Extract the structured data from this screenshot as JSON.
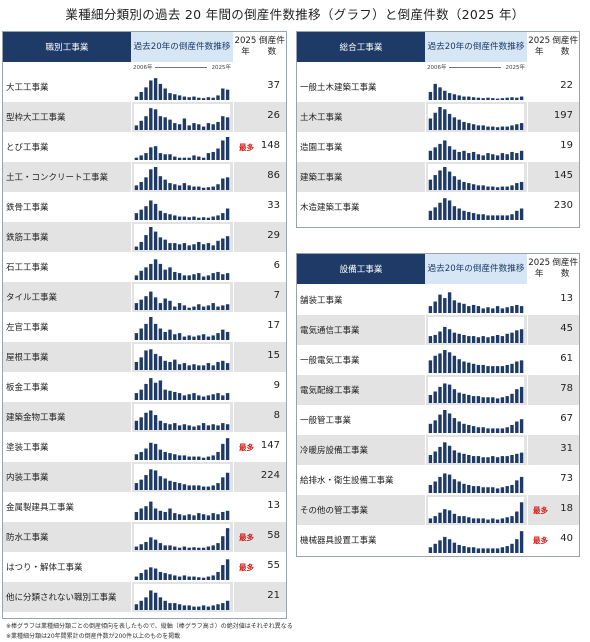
{
  "title": "業種細分類別の過去 20 年間の倒産件数推移（グラフ）と倒産件数（2025 年）",
  "colors": {
    "header_dark": "#1e3a66",
    "header_light": "#d6e6f5",
    "bar": "#1e3a66",
    "alt_row": "#e3e3e3",
    "badge": "#d0201a"
  },
  "axis_labels": {
    "start": "2006年",
    "end": "2025年"
  },
  "badge_text": "最多",
  "panels": [
    {
      "name": "職別工事業",
      "col1": "職別工事業",
      "col2a": "過去20年の",
      "col2b": "倒産件数推移",
      "col3a": "2025年",
      "col3b": "倒産件数",
      "show_axis": true
    },
    {
      "name": "総合工事業",
      "col1": "総合工事業",
      "col2a": "過去20年の",
      "col2b": "倒産件数推移",
      "col3a": "2025年",
      "col3b": "倒産件数",
      "show_axis": true
    },
    {
      "name": "設備工事業",
      "col1": "設備工事業",
      "col2a": "過去20年の",
      "col2b": "倒産件数推移",
      "col3a": "2025年",
      "col3b": "倒産件数",
      "show_axis": false
    }
  ],
  "chart_data": [
    {
      "type": "bar",
      "group": "職別工事業",
      "note": "sparkline of annual counts 2006-2025, normalized per row",
      "rows": [
        {
          "label": "大工工事業",
          "value": "37",
          "top": false,
          "bars": [
            0.15,
            0.35,
            0.55,
            0.85,
            0.95,
            0.7,
            0.5,
            0.3,
            0.25,
            0.2,
            0.15,
            0.12,
            0.15,
            0.1,
            0.08,
            0.12,
            0.1,
            0.2,
            0.5,
            0.45
          ]
        },
        {
          "label": "型枠大工工事業",
          "value": "26",
          "top": false,
          "bars": [
            0.2,
            0.4,
            0.6,
            0.95,
            0.9,
            0.6,
            0.55,
            0.45,
            0.3,
            0.25,
            0.5,
            0.2,
            0.3,
            0.25,
            0.15,
            0.3,
            0.25,
            0.35,
            0.6,
            0.55
          ]
        },
        {
          "label": "とび工事業",
          "value": "148",
          "top": true,
          "bars": [
            0.1,
            0.2,
            0.3,
            0.55,
            0.6,
            0.3,
            0.25,
            0.25,
            0.15,
            0.1,
            0.1,
            0.1,
            0.2,
            0.15,
            0.1,
            0.3,
            0.35,
            0.5,
            0.85,
            1.0
          ]
        },
        {
          "label": "土工・コンクリート工事業",
          "value": "86",
          "top": false,
          "bars": [
            0.2,
            0.35,
            0.55,
            0.9,
            1.0,
            0.6,
            0.45,
            0.3,
            0.25,
            0.2,
            0.3,
            0.2,
            0.15,
            0.15,
            0.1,
            0.12,
            0.15,
            0.25,
            0.5,
            0.55
          ]
        },
        {
          "label": "鉄骨工事業",
          "value": "33",
          "top": false,
          "bars": [
            0.3,
            0.45,
            0.6,
            0.85,
            0.7,
            0.4,
            0.3,
            0.25,
            0.2,
            0.15,
            0.15,
            0.12,
            0.15,
            0.1,
            0.12,
            0.1,
            0.15,
            0.2,
            0.3,
            0.5
          ]
        },
        {
          "label": "鉄筋工事業",
          "value": "29",
          "top": false,
          "bars": [
            0.15,
            0.35,
            0.65,
            1.0,
            0.8,
            0.55,
            0.45,
            0.3,
            0.3,
            0.25,
            0.3,
            0.2,
            0.25,
            0.35,
            0.25,
            0.3,
            0.2,
            0.4,
            0.5,
            0.6
          ]
        },
        {
          "label": "石工工事業",
          "value": "6",
          "top": false,
          "bars": [
            0.2,
            0.4,
            0.55,
            0.7,
            0.9,
            0.7,
            0.45,
            0.55,
            0.35,
            0.3,
            0.2,
            0.2,
            0.25,
            0.3,
            0.15,
            0.2,
            0.3,
            0.35,
            0.25,
            0.3
          ]
        },
        {
          "label": "タイル工事業",
          "value": "7",
          "top": false,
          "bars": [
            0.3,
            0.45,
            0.6,
            0.8,
            0.55,
            0.3,
            0.5,
            0.4,
            0.15,
            0.3,
            0.2,
            0.1,
            0.15,
            0.25,
            0.15,
            0.2,
            0.3,
            0.15,
            0.2,
            0.25
          ]
        },
        {
          "label": "左官工事業",
          "value": "17",
          "top": false,
          "bars": [
            0.3,
            0.5,
            0.7,
            1.0,
            0.7,
            0.5,
            0.35,
            0.45,
            0.25,
            0.3,
            0.15,
            0.2,
            0.15,
            0.2,
            0.25,
            0.15,
            0.2,
            0.3,
            0.45,
            0.35
          ]
        },
        {
          "label": "屋根工事業",
          "value": "15",
          "top": false,
          "bars": [
            0.35,
            0.55,
            0.85,
            0.9,
            0.7,
            0.6,
            0.4,
            0.35,
            0.45,
            0.25,
            0.3,
            0.2,
            0.25,
            0.2,
            0.2,
            0.3,
            0.2,
            0.35,
            0.4,
            0.3
          ]
        },
        {
          "label": "板金工事業",
          "value": "9",
          "top": false,
          "bars": [
            0.3,
            0.45,
            0.7,
            0.95,
            0.75,
            0.85,
            0.45,
            0.4,
            0.35,
            0.3,
            0.2,
            0.25,
            0.3,
            0.2,
            0.15,
            0.2,
            0.25,
            0.3,
            0.2,
            0.3
          ]
        },
        {
          "label": "建築金物工事業",
          "value": "8",
          "top": false,
          "bars": [
            0.4,
            0.55,
            0.75,
            0.85,
            0.65,
            0.4,
            0.3,
            0.25,
            0.3,
            0.2,
            0.25,
            0.2,
            0.15,
            0.2,
            0.3,
            0.2,
            0.25,
            0.2,
            0.3,
            0.25
          ]
        },
        {
          "label": "塗装工事業",
          "value": "147",
          "top": true,
          "bars": [
            0.25,
            0.35,
            0.5,
            0.75,
            0.7,
            0.45,
            0.35,
            0.3,
            0.25,
            0.2,
            0.2,
            0.15,
            0.15,
            0.15,
            0.1,
            0.15,
            0.2,
            0.35,
            0.7,
            0.95
          ]
        },
        {
          "label": "内装工事業",
          "value": "224",
          "top": false,
          "bars": [
            0.3,
            0.45,
            0.65,
            0.9,
            0.85,
            0.6,
            0.5,
            0.4,
            0.35,
            0.3,
            0.25,
            0.2,
            0.2,
            0.2,
            0.15,
            0.15,
            0.2,
            0.3,
            0.55,
            0.75
          ]
        },
        {
          "label": "金属製建具工事業",
          "value": "13",
          "top": false,
          "bars": [
            0.35,
            0.5,
            0.6,
            0.8,
            0.5,
            0.4,
            0.35,
            0.5,
            0.3,
            0.25,
            0.2,
            0.25,
            0.2,
            0.3,
            0.25,
            0.2,
            0.3,
            0.25,
            0.35,
            0.4
          ]
        },
        {
          "label": "防水工事業",
          "value": "58",
          "top": true,
          "bars": [
            0.15,
            0.25,
            0.35,
            0.55,
            0.45,
            0.3,
            0.2,
            0.2,
            0.15,
            0.1,
            0.15,
            0.1,
            0.12,
            0.1,
            0.1,
            0.15,
            0.2,
            0.3,
            0.6,
            0.95
          ]
        },
        {
          "label": "はつり・解体工事業",
          "value": "55",
          "top": true,
          "bars": [
            0.15,
            0.3,
            0.45,
            0.55,
            0.5,
            0.35,
            0.3,
            0.25,
            0.2,
            0.15,
            0.2,
            0.15,
            0.15,
            0.12,
            0.1,
            0.15,
            0.2,
            0.35,
            0.65,
            0.9
          ]
        },
        {
          "label": "他に分類されない職別工事業",
          "value": "21",
          "top": false,
          "bars": [
            0.25,
            0.4,
            0.55,
            0.85,
            0.75,
            0.55,
            0.4,
            0.3,
            0.3,
            0.25,
            0.2,
            0.2,
            0.15,
            0.15,
            0.2,
            0.15,
            0.2,
            0.25,
            0.3,
            0.4
          ]
        }
      ]
    },
    {
      "type": "bar",
      "group": "総合工事業",
      "rows": [
        {
          "label": "一般土木建築工事業",
          "value": "22",
          "top": false,
          "bars": [
            0.35,
            0.7,
            0.55,
            0.4,
            0.3,
            0.25,
            0.2,
            0.15,
            0.15,
            0.12,
            0.1,
            0.08,
            0.1,
            0.08,
            0.06,
            0.08,
            0.1,
            0.12,
            0.1,
            0.15
          ]
        },
        {
          "label": "土木工事業",
          "value": "197",
          "top": false,
          "bars": [
            0.5,
            0.75,
            1.0,
            0.9,
            0.7,
            0.55,
            0.45,
            0.35,
            0.3,
            0.25,
            0.2,
            0.2,
            0.15,
            0.15,
            0.12,
            0.15,
            0.15,
            0.2,
            0.25,
            0.3
          ]
        },
        {
          "label": "造園工事業",
          "value": "19",
          "top": false,
          "bars": [
            0.4,
            0.55,
            0.7,
            0.85,
            0.6,
            0.45,
            0.35,
            0.4,
            0.3,
            0.35,
            0.25,
            0.2,
            0.3,
            0.25,
            0.2,
            0.3,
            0.25,
            0.35,
            0.3,
            0.4
          ]
        },
        {
          "label": "建築工事業",
          "value": "145",
          "top": false,
          "bars": [
            0.45,
            0.65,
            0.85,
            1.0,
            0.8,
            0.6,
            0.45,
            0.35,
            0.3,
            0.25,
            0.2,
            0.2,
            0.15,
            0.15,
            0.12,
            0.15,
            0.15,
            0.2,
            0.3,
            0.35
          ]
        },
        {
          "label": "木造建築工事業",
          "value": "230",
          "top": false,
          "bars": [
            0.4,
            0.55,
            0.75,
            0.95,
            0.85,
            0.6,
            0.5,
            0.4,
            0.35,
            0.3,
            0.25,
            0.25,
            0.2,
            0.2,
            0.2,
            0.2,
            0.2,
            0.25,
            0.4,
            0.5
          ]
        }
      ]
    },
    {
      "type": "bar",
      "group": "設備工事業",
      "rows": [
        {
          "label": "舗装工事業",
          "value": "13",
          "top": false,
          "bars": [
            0.3,
            0.5,
            0.8,
            0.65,
            0.9,
            0.55,
            0.45,
            0.4,
            0.3,
            0.35,
            0.3,
            0.2,
            0.25,
            0.2,
            0.3,
            0.2,
            0.25,
            0.3,
            0.35,
            0.3
          ]
        },
        {
          "label": "電気通信工事業",
          "value": "45",
          "top": false,
          "bars": [
            0.3,
            0.35,
            0.5,
            0.7,
            0.6,
            0.45,
            0.4,
            0.35,
            0.3,
            0.3,
            0.25,
            0.3,
            0.25,
            0.3,
            0.35,
            0.3,
            0.4,
            0.45,
            0.55,
            0.6
          ]
        },
        {
          "label": "一般電気工事業",
          "value": "61",
          "top": false,
          "bars": [
            0.55,
            0.75,
            0.85,
            1.0,
            0.9,
            0.75,
            0.6,
            0.5,
            0.45,
            0.4,
            0.35,
            0.35,
            0.3,
            0.3,
            0.3,
            0.3,
            0.35,
            0.4,
            0.5,
            0.55
          ]
        },
        {
          "label": "電気配線工事業",
          "value": "78",
          "top": false,
          "bars": [
            0.35,
            0.5,
            0.7,
            0.85,
            0.8,
            0.6,
            0.45,
            0.4,
            0.35,
            0.3,
            0.3,
            0.25,
            0.25,
            0.25,
            0.2,
            0.25,
            0.3,
            0.4,
            0.6,
            0.7
          ]
        },
        {
          "label": "一般管工事業",
          "value": "67",
          "top": false,
          "bars": [
            0.4,
            0.55,
            0.8,
            1.0,
            0.85,
            0.65,
            0.5,
            0.4,
            0.35,
            0.3,
            0.25,
            0.25,
            0.2,
            0.2,
            0.2,
            0.2,
            0.25,
            0.35,
            0.5,
            0.6
          ]
        },
        {
          "label": "冷暖房設備工事業",
          "value": "31",
          "top": false,
          "bars": [
            0.35,
            0.5,
            0.7,
            0.9,
            0.75,
            0.55,
            0.45,
            0.4,
            0.35,
            0.3,
            0.3,
            0.25,
            0.25,
            0.3,
            0.25,
            0.3,
            0.3,
            0.35,
            0.4,
            0.45
          ]
        },
        {
          "label": "給排水・衛生設備工事業",
          "value": "73",
          "top": false,
          "bars": [
            0.35,
            0.5,
            0.7,
            0.85,
            0.8,
            0.6,
            0.5,
            0.4,
            0.35,
            0.3,
            0.3,
            0.25,
            0.25,
            0.25,
            0.2,
            0.25,
            0.3,
            0.35,
            0.55,
            0.7
          ]
        },
        {
          "label": "その他の管工事業",
          "value": "18",
          "top": true,
          "bars": [
            0.2,
            0.3,
            0.45,
            0.6,
            0.55,
            0.4,
            0.3,
            0.3,
            0.25,
            0.2,
            0.2,
            0.2,
            0.15,
            0.2,
            0.15,
            0.2,
            0.25,
            0.3,
            0.5,
            0.9
          ]
        },
        {
          "label": "機械器具設置工事業",
          "value": "40",
          "top": true,
          "bars": [
            0.25,
            0.4,
            0.55,
            0.7,
            0.6,
            0.45,
            0.35,
            0.3,
            0.25,
            0.25,
            0.2,
            0.2,
            0.2,
            0.2,
            0.2,
            0.25,
            0.3,
            0.4,
            0.6,
            0.95
          ]
        }
      ]
    }
  ],
  "footnotes": [
    "※棒グラフは業種細分類ごとの倒産傾向を表したもので、縦軸（棒グラフ高さ）の絶対値はそれぞれ異なる",
    "※業種細分類は20年間累計の倒産件数が200件以上のものを掲載"
  ]
}
